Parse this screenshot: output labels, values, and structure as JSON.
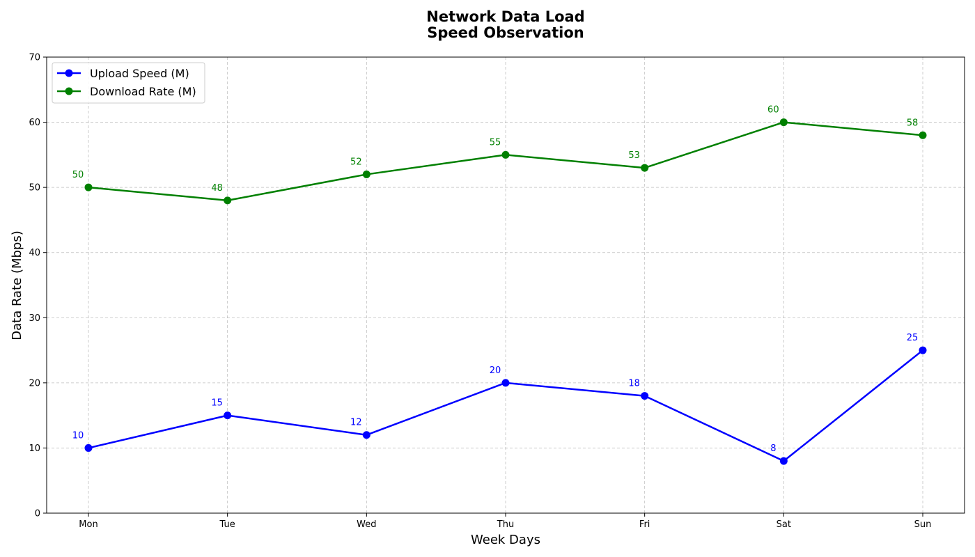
{
  "chart_data": {
    "type": "line",
    "title_lines": [
      "Network Data Load",
      "Speed Observation"
    ],
    "xlabel": "Week Days",
    "ylabel": "Data Rate (Mbps)",
    "categories": [
      "Mon",
      "Tue",
      "Wed",
      "Thu",
      "Fri",
      "Sat",
      "Sun"
    ],
    "ylim": [
      0,
      70
    ],
    "yticks": [
      0,
      10,
      20,
      30,
      40,
      50,
      60,
      70
    ],
    "grid": true,
    "legend_position": "top-left",
    "series": [
      {
        "name": "Upload Speed (M)",
        "color": "#0000ff",
        "values": [
          10,
          15,
          12,
          20,
          18,
          8,
          25
        ]
      },
      {
        "name": "Download Rate (M)",
        "color": "#008000",
        "values": [
          50,
          48,
          52,
          55,
          53,
          60,
          58
        ]
      }
    ]
  }
}
